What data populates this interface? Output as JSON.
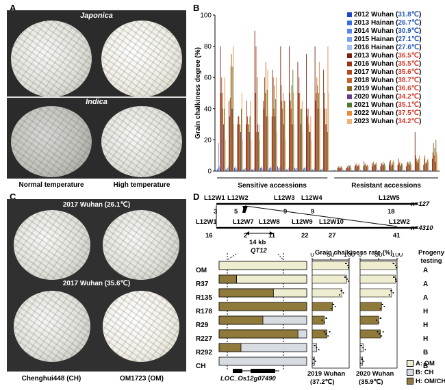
{
  "panel_a": {
    "letter": "A",
    "japonica": "Japonica",
    "indica": "Indica",
    "label_normal": "Normal temperature",
    "label_high": "High temperature"
  },
  "panel_c": {
    "letter": "C",
    "cond_top": "2017 Wuhan (26.1℃)",
    "cond_bottom": "2017 Wuhan (35.6℃)",
    "label_ch": "Chenghui448 (CH)",
    "label_om": "OM1723 (OM)"
  },
  "panel_b": {
    "letter": "B",
    "group_sensitive": "Sensitive accessions",
    "group_resistant": "Resistant accessions"
  },
  "panel_d": {
    "letter": "D",
    "map1_markers": [
      "L12W1",
      "L12W2",
      "L12W3",
      "L12W4",
      "L12W5"
    ],
    "map1_counts": [
      "3",
      "5",
      "9",
      "9",
      "18"
    ],
    "map1_n": "n=127",
    "map2_markers": [
      "L12W1",
      "L12W7",
      "L12W8",
      "L12W9",
      "L12W10",
      "L12W2"
    ],
    "map2_counts": [
      "16",
      "2",
      "11",
      "22",
      "27",
      "41"
    ],
    "map2_n": "n=4310",
    "interval": "14 kb",
    "qtl": "QT12",
    "gene": "LOC_Os12g07490",
    "rate_title": "Grain chalkiness rate (%)",
    "axis_ticks": [
      "0",
      "50",
      "100"
    ],
    "progeny_title": "Progeny testing",
    "lines": [
      {
        "name": "OM",
        "om_frac": 1.0,
        "r2019": 98,
        "r2020": 97,
        "progeny": "A"
      },
      {
        "name": "R37",
        "om_frac": 0.2,
        "r2019": 93,
        "r2020": 95,
        "progeny": "A"
      },
      {
        "name": "R135",
        "om_frac": 0.62,
        "r2019": 80,
        "r2020": 85,
        "progeny": "A"
      },
      {
        "name": "R178",
        "om_frac": 1.0,
        "r2019": 55,
        "r2020": 58,
        "progeny": "H"
      },
      {
        "name": "R29",
        "om_frac": 0.5,
        "r2019": 33,
        "r2020": 50,
        "progeny": "H"
      },
      {
        "name": "R227",
        "om_frac": 0.9,
        "r2019": 40,
        "r2020": 55,
        "progeny": "H"
      },
      {
        "name": "R292",
        "om_frac": 0.25,
        "r2019": 12,
        "r2020": 8,
        "progeny": "B"
      },
      {
        "name": "CH",
        "om_frac": 0.0,
        "r2019": 6,
        "r2020": 7,
        "progeny": "B"
      }
    ],
    "cond_2019": "2019 Wuhan",
    "temp_2019": "(37.2℃)",
    "cond_2020": "2020 Wuhan",
    "temp_2020": "(35.9℃)",
    "legend": [
      {
        "text": "A: OM",
        "color": "#efedcf"
      },
      {
        "text": "B: CH",
        "color": "#d7dce2"
      },
      {
        "text": "H: OM/CH",
        "color": "#8f7a3c"
      }
    ]
  },
  "chart_data": {
    "type": "bar",
    "title": "",
    "xlabel": "",
    "ylabel": "Grain chalkiness degree (%)",
    "ylim": [
      0,
      100
    ],
    "yticks": [
      "0",
      "20",
      "40",
      "60",
      "80",
      "100"
    ],
    "legend_placement": "top-right",
    "groups": [
      "Sensitive accessions",
      "Resistant accessions"
    ],
    "accessions_per_group": [
      13,
      12
    ],
    "series": [
      {
        "name": "2012 Wuhan",
        "temp": "31.8℃",
        "temp_color": "#2255bb",
        "color": "#1f45c8",
        "values": [
          1,
          1,
          2,
          1,
          1,
          2,
          1,
          3,
          1,
          2,
          1,
          1,
          1,
          0.5,
          0.5,
          0.5,
          0.5,
          0.5,
          0.5,
          0.5,
          0.5,
          0.5,
          0.5,
          0.5,
          0.5
        ]
      },
      {
        "name": "2013 Hainan",
        "temp": "26.7℃",
        "temp_color": "#2255bb",
        "color": "#3a6ee0",
        "values": [
          2,
          1,
          1,
          1,
          1,
          2,
          2,
          1,
          1,
          1,
          2,
          1,
          1,
          0.5,
          0.5,
          0.5,
          0.5,
          0.5,
          0.5,
          0.5,
          0.5,
          0.5,
          0.5,
          0.5,
          0.5
        ]
      },
      {
        "name": "2014 Wuhan",
        "temp": "30.9℃",
        "temp_color": "#2255bb",
        "color": "#5b86e8",
        "values": [
          18,
          2,
          3,
          1,
          1,
          3,
          2,
          2,
          1,
          2,
          2,
          1,
          1,
          0.5,
          0.5,
          0.5,
          0.5,
          0.5,
          0.5,
          0.5,
          0.5,
          0.5,
          0.5,
          0.5,
          0.5
        ]
      },
      {
        "name": "2015 Hainan",
        "temp": "27.1℃",
        "temp_color": "#2255bb",
        "color": "#7aa2ee",
        "values": [
          3,
          2,
          2,
          2,
          1,
          2,
          3,
          2,
          1,
          2,
          3,
          1,
          2,
          0.5,
          0.5,
          0.5,
          0.5,
          0.5,
          0.5,
          0.5,
          0.5,
          0.5,
          0.5,
          0.5,
          0.5
        ]
      },
      {
        "name": "2016 Hainan",
        "temp": "27.6℃",
        "temp_color": "#2255bb",
        "color": "#9fc2f2",
        "values": [
          2,
          3,
          1,
          2,
          2,
          1,
          2,
          3,
          2,
          1,
          2,
          2,
          1,
          0.5,
          0.5,
          0.5,
          0.5,
          0.5,
          0.5,
          0.5,
          0.5,
          0.5,
          0.5,
          0.5,
          0.5
        ]
      },
      {
        "name": "2013 Wuhan",
        "temp": "36.5℃",
        "temp_color": "#d23a2a",
        "color": "#7a1f10",
        "values": [
          80,
          45,
          30,
          30,
          90,
          45,
          35,
          80,
          80,
          70,
          75,
          80,
          65,
          2,
          2,
          3,
          3,
          5,
          3,
          6,
          4,
          3,
          25,
          4,
          8
        ]
      },
      {
        "name": "2016 Wuhan",
        "temp": "35.5℃",
        "temp_color": "#d23a2a",
        "color": "#9a3418",
        "values": [
          50,
          35,
          35,
          45,
          50,
          40,
          65,
          55,
          50,
          50,
          40,
          45,
          50,
          3,
          2,
          4,
          6,
          3,
          5,
          4,
          8,
          5,
          10,
          8,
          12
        ]
      },
      {
        "name": "2017 Wuhan",
        "temp": "35.6℃",
        "temp_color": "#d23a2a",
        "color": "#b04a1e",
        "values": [
          60,
          47,
          35,
          35,
          80,
          60,
          60,
          45,
          45,
          60,
          35,
          50,
          40,
          2,
          3,
          5,
          4,
          6,
          5,
          7,
          5,
          6,
          8,
          10,
          18
        ]
      },
      {
        "name": "2018 Wuhan",
        "temp": "38.7℃",
        "temp_color": "#d23a2a",
        "color": "#c8622b",
        "values": [
          40,
          67,
          30,
          30,
          25,
          50,
          40,
          40,
          40,
          50,
          40,
          60,
          30,
          2,
          2,
          3,
          4,
          5,
          4,
          3,
          6,
          5,
          6,
          5,
          10
        ]
      },
      {
        "name": "2019 Wuhan",
        "temp": "36.6℃",
        "temp_color": "#d23a2a",
        "color": "#8a6a20",
        "values": [
          50,
          75,
          30,
          30,
          60,
          70,
          55,
          50,
          55,
          40,
          30,
          55,
          40,
          3,
          4,
          4,
          5,
          4,
          6,
          5,
          4,
          6,
          7,
          6,
          15
        ]
      },
      {
        "name": "2020 Wuhan",
        "temp": "34.2℃",
        "temp_color": "#d23a2a",
        "color": "#6a3d8a",
        "values": [
          30,
          40,
          25,
          25,
          30,
          35,
          35,
          30,
          30,
          30,
          25,
          40,
          30,
          2,
          3,
          3,
          3,
          4,
          4,
          4,
          3,
          4,
          5,
          5,
          6
        ]
      },
      {
        "name": "2021 Wuhan",
        "temp": "35.1℃",
        "temp_color": "#d23a2a",
        "color": "#4a7a2a",
        "values": [
          40,
          67,
          40,
          35,
          25,
          52,
          46,
          45,
          65,
          40,
          25,
          50,
          25,
          3,
          4,
          4,
          4,
          5,
          5,
          6,
          5,
          6,
          8,
          7,
          20
        ]
      },
      {
        "name": "2022 Wuhan",
        "temp": "37.5℃",
        "temp_color": "#d23a2a",
        "color": "#e88a3a",
        "values": [
          60,
          80,
          50,
          45,
          30,
          65,
          60,
          45,
          50,
          45,
          35,
          70,
          80,
          2,
          3,
          5,
          4,
          6,
          4,
          7,
          5,
          5,
          10,
          8,
          12
        ]
      },
      {
        "name": "2023 Wuhan",
        "temp": "34.2℃",
        "temp_color": "#d23a2a",
        "color": "#f2b37a",
        "values": [
          20,
          30,
          20,
          20,
          20,
          35,
          25,
          20,
          30,
          25,
          20,
          40,
          50,
          2,
          2,
          3,
          3,
          4,
          3,
          5,
          4,
          4,
          8,
          6,
          10
        ]
      }
    ]
  }
}
